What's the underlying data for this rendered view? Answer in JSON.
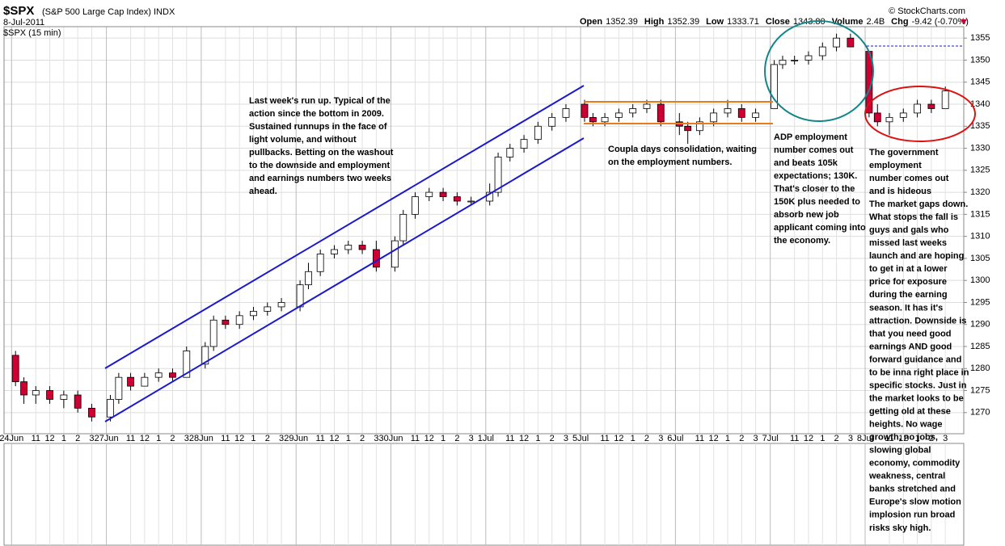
{
  "header": {
    "symbol": "$SPX",
    "name": "(S&P 500 Large Cap Index) INDX",
    "date": "8-Jul-2011",
    "period": "$SPX (15 min)",
    "copyright": "© StockCharts.com",
    "quote": [
      {
        "label": "Open",
        "value": "1352.39"
      },
      {
        "label": "High",
        "value": "1352.39"
      },
      {
        "label": "Low",
        "value": "1333.71"
      },
      {
        "label": "Close",
        "value": "1343.80"
      },
      {
        "label": "Volume",
        "value": "2.4B"
      },
      {
        "label": "Chg",
        "value": "-9.42 (-0.70%)"
      }
    ]
  },
  "chart_data": {
    "type": "candlestick",
    "up_color": "#ffffff",
    "down_color": "#cc0033",
    "grid": true,
    "categories": [
      "24Jun",
      null,
      "11",
      "12",
      "1",
      "2",
      "3",
      "27Jun",
      null,
      "11",
      "12",
      "1",
      "2",
      "3",
      "28Jun",
      null,
      "11",
      "12",
      "1",
      "2",
      "3",
      "29Jun",
      null,
      "11",
      "12",
      "1",
      "2",
      "3",
      "30Jun",
      null,
      "11",
      "12",
      "1",
      "2",
      "3",
      "1Jul",
      null,
      "11",
      "12",
      "1",
      "2",
      "3",
      "5Jul",
      null,
      "11",
      "12",
      "1",
      "2",
      "3",
      "6Jul",
      null,
      "11",
      "12",
      "1",
      "2",
      "3",
      "7Jul",
      null,
      "11",
      "12",
      "1",
      "2",
      "3",
      "8Jul",
      null,
      "11",
      "12",
      "1",
      "2",
      "3"
    ],
    "open": [
      1283,
      1277,
      1274,
      1275,
      1273,
      1274,
      1271,
      1269,
      1273,
      1278,
      1276,
      1278,
      1279,
      1278,
      1281,
      1285,
      1291,
      1290,
      1292,
      1293,
      1294,
      1294,
      1299,
      1302,
      1306,
      1307,
      1308,
      1307,
      1303,
      1309,
      1315,
      1319,
      1320,
      1319,
      1318,
      1318,
      1320,
      1328,
      1330,
      1332,
      1335,
      1337,
      1340,
      1337,
      1336,
      1337,
      1338,
      1339,
      1340,
      1336,
      1335,
      1334,
      1336,
      1338,
      1339,
      1337,
      1339,
      1349,
      1350,
      1350,
      1351,
      1353,
      1355,
      1352,
      1338,
      1336,
      1337,
      1338,
      1340,
      1339
    ],
    "high": [
      1284,
      1278,
      1276,
      1276,
      1275,
      1275,
      1272,
      1274,
      1279,
      1279,
      1279,
      1280,
      1280,
      1285,
      1286,
      1292,
      1292,
      1293,
      1294,
      1295,
      1296,
      1300,
      1304,
      1307,
      1308,
      1309,
      1309,
      1309,
      1310,
      1316,
      1320,
      1321,
      1321,
      1320,
      1319,
      1322,
      1329,
      1331,
      1333,
      1336,
      1338,
      1340,
      1341,
      1338,
      1338,
      1339,
      1340,
      1341,
      1341,
      1338,
      1336,
      1337,
      1339,
      1341,
      1340,
      1339,
      1350,
      1351,
      1351,
      1352,
      1354,
      1356,
      1356,
      1352,
      1340,
      1338,
      1339,
      1341,
      1341,
      1344
    ],
    "low": [
      1276,
      1272,
      1272,
      1272,
      1271,
      1270,
      1268,
      1268,
      1272,
      1275,
      1276,
      1277,
      1277,
      1278,
      1280,
      1284,
      1289,
      1289,
      1291,
      1292,
      1293,
      1293,
      1298,
      1301,
      1305,
      1306,
      1306,
      1302,
      1302,
      1308,
      1314,
      1318,
      1318,
      1317,
      1317,
      1317,
      1319,
      1327,
      1329,
      1331,
      1334,
      1336,
      1336,
      1335,
      1335,
      1336,
      1337,
      1338,
      1335,
      1333,
      1331,
      1333,
      1335,
      1337,
      1336,
      1336,
      1339,
      1348,
      1349,
      1349,
      1350,
      1352,
      1353,
      1337,
      1335,
      1333,
      1336,
      1337,
      1338,
      1339
    ],
    "close": [
      1277,
      1274,
      1275,
      1273,
      1274,
      1271,
      1269,
      1273,
      1278,
      1276,
      1278,
      1279,
      1278,
      1284,
      1285,
      1291,
      1290,
      1292,
      1293,
      1294,
      1295,
      1299,
      1302,
      1306,
      1307,
      1308,
      1307,
      1303,
      1309,
      1315,
      1319,
      1320,
      1319,
      1318,
      1318,
      1320,
      1328,
      1330,
      1332,
      1335,
      1337,
      1339,
      1337,
      1336,
      1337,
      1338,
      1339,
      1340,
      1336,
      1335,
      1334,
      1336,
      1338,
      1339,
      1337,
      1338,
      1349,
      1350,
      1350,
      1351,
      1353,
      1355,
      1353,
      1338,
      1336,
      1337,
      1338,
      1340,
      1339,
      1343
    ],
    "ylim": [
      1265.2,
      1357.6
    ],
    "yticks": [
      1270,
      1275,
      1280,
      1285,
      1290,
      1295,
      1300,
      1305,
      1310,
      1315,
      1320,
      1325,
      1330,
      1335,
      1340,
      1345,
      1350,
      1355
    ],
    "annotations": [
      {
        "color": "#1a1aaa",
        "lines": [
          "Last week's run up.  Typical of the",
          "action since the bottom in 2009.",
          "Sustained runnups in the face of",
          "light volume, and without",
          "pullbacks.  Betting on the washout",
          "to the downside and employment",
          "and earnings numbers two weeks",
          "ahead."
        ]
      },
      {
        "color": "#e87b1e",
        "lines": [
          "Coupla days consolidation, waiting",
          "on the employment numbers."
        ]
      },
      {
        "color": "#14868a",
        "lines": [
          "ADP employment",
          "number comes out",
          "and beats 105k",
          "expectations; 130K.",
          "That's closer to the",
          "150K plus needed to",
          "absorb new job",
          "applicant coming into",
          "the economy."
        ]
      },
      {
        "color": "#dd1111",
        "lines": [
          "The government",
          "employment",
          "number comes out",
          "and is hideous",
          "The market gaps down.",
          "What stops the fall is",
          "guys and gals who",
          "missed last weeks",
          "launch and are hoping",
          "to get in at a lower",
          "price for exposure",
          "during the earning",
          "season. It has it's",
          "attraction. Downside is",
          "that you need good",
          "earnings AND good",
          "forward guidance and",
          "to be inna right place in",
          "specific stocks. Just in",
          "the market looks to be",
          "getting old at these",
          "heights. No wage",
          "growth, no jobs,",
          "slowing global",
          "economy, commodity",
          "weakness, central",
          "banks stretched and",
          "Europe's slow motion",
          "implosion run broad",
          "risks sky high."
        ]
      }
    ]
  }
}
